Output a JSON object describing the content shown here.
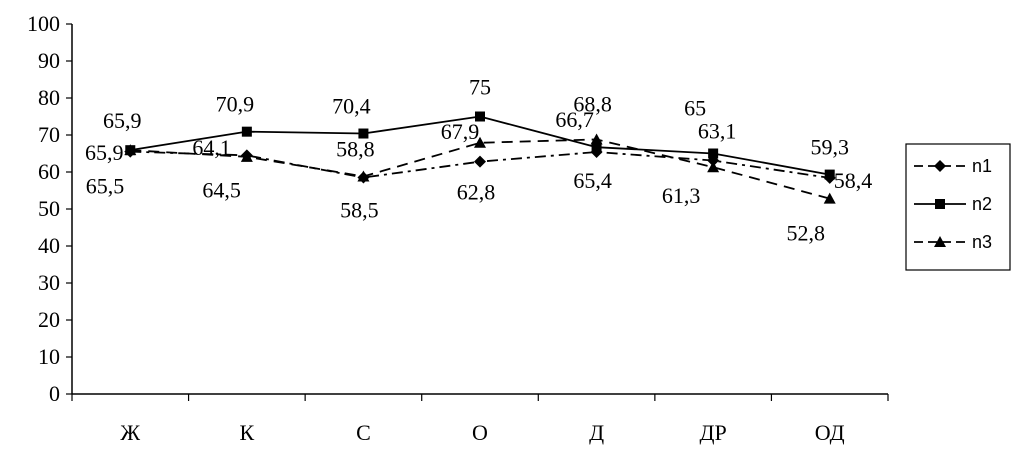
{
  "chart_data": {
    "type": "line",
    "categories": [
      "Ж",
      "К",
      "С",
      "О",
      "Д",
      "ДР",
      "ОД"
    ],
    "series": [
      {
        "name": "n1",
        "values": [
          65.5,
          64.5,
          58.5,
          62.8,
          65.4,
          63.1,
          58.4
        ],
        "marker": "diamond",
        "dash": "dash-dot",
        "color": "#000000"
      },
      {
        "name": "n2",
        "values": [
          65.9,
          70.9,
          70.4,
          75,
          66.7,
          65,
          59.3
        ],
        "marker": "square",
        "dash": "solid",
        "color": "#000000"
      },
      {
        "name": "n3",
        "values": [
          65.9,
          64.1,
          58.8,
          67.9,
          68.8,
          61.3,
          52.8
        ],
        "marker": "triangle",
        "dash": "dashed",
        "color": "#000000"
      }
    ],
    "data_labels": [
      [
        "65,5",
        "64,5",
        "58,5",
        "62,8",
        "65,4",
        "63,1",
        "58,4"
      ],
      [
        "65,9",
        "70,9",
        "70,4",
        "75",
        "66,7",
        "65",
        "59,3"
      ],
      [
        "65,9",
        "64,1",
        "58,8",
        "67,9",
        "68,8",
        "61,3",
        "52,8"
      ]
    ],
    "y_ticks": [
      "0",
      "10",
      "20",
      "30",
      "40",
      "50",
      "60",
      "70",
      "80",
      "90",
      "100"
    ],
    "ylim": [
      0,
      100
    ],
    "legend": "right",
    "grid": false
  }
}
